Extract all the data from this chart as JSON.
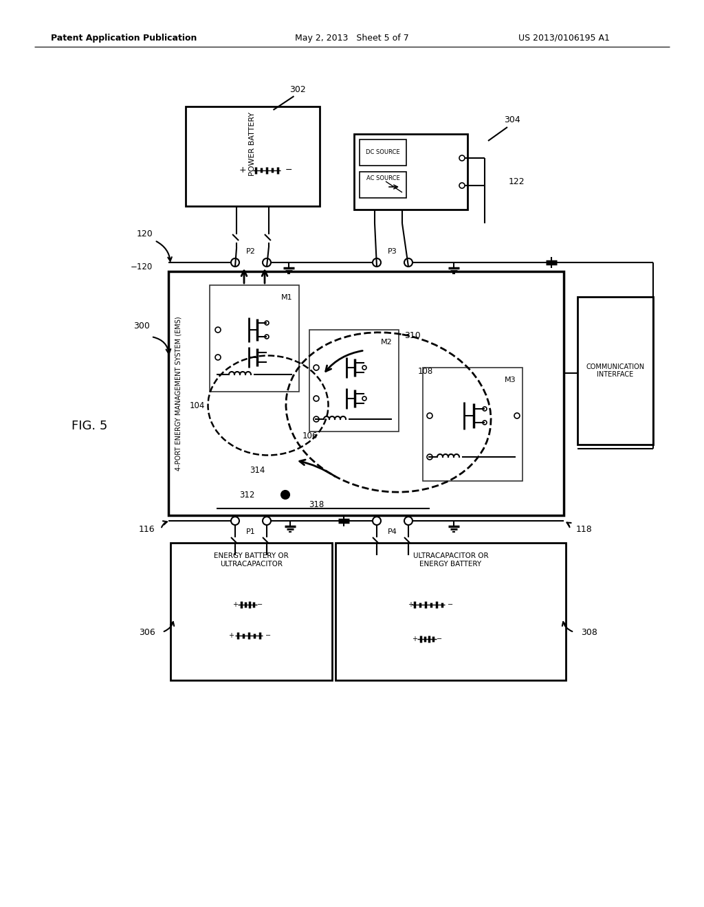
{
  "title_left": "Patent Application Publication",
  "title_mid": "May 2, 2013  Sheet 5 of 7",
  "title_right": "US 2013/0106195 A1",
  "fig_label": "FIG. 5",
  "background_color": "#ffffff",
  "line_color": "#000000",
  "text_color": "#000000"
}
